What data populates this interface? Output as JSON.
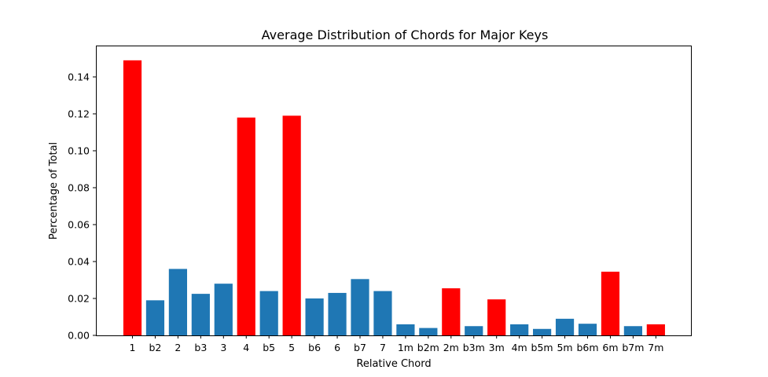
{
  "chart_data": {
    "type": "bar",
    "title": "Average Distribution of Chords for Major Keys",
    "xlabel": "Relative Chord",
    "ylabel": "Percentage of Total",
    "ylim": [
      0,
      0.157
    ],
    "yticks": [
      "0.00",
      "0.02",
      "0.04",
      "0.06",
      "0.08",
      "0.10",
      "0.12",
      "0.14"
    ],
    "grid": false,
    "categories": [
      "1",
      "b2",
      "2",
      "b3",
      "3",
      "4",
      "b5",
      "5",
      "b6",
      "6",
      "b7",
      "7",
      "1m",
      "b2m",
      "2m",
      "b3m",
      "3m",
      "4m",
      "b5m",
      "5m",
      "b6m",
      "6m",
      "b7m",
      "7m"
    ],
    "values": [
      0.149,
      0.019,
      0.036,
      0.0225,
      0.028,
      0.118,
      0.024,
      0.119,
      0.02,
      0.023,
      0.0305,
      0.024,
      0.006,
      0.004,
      0.0255,
      0.005,
      0.0195,
      0.006,
      0.0035,
      0.009,
      0.0063,
      0.0345,
      0.005,
      0.006
    ],
    "bar_colors": [
      "#ff0000",
      "#1f77b4",
      "#1f77b4",
      "#1f77b4",
      "#1f77b4",
      "#ff0000",
      "#1f77b4",
      "#ff0000",
      "#1f77b4",
      "#1f77b4",
      "#1f77b4",
      "#1f77b4",
      "#1f77b4",
      "#1f77b4",
      "#ff0000",
      "#1f77b4",
      "#ff0000",
      "#1f77b4",
      "#1f77b4",
      "#1f77b4",
      "#1f77b4",
      "#ff0000",
      "#1f77b4",
      "#ff0000"
    ],
    "colors": {
      "diatonic": "#ff0000",
      "other": "#1f77b4"
    }
  }
}
